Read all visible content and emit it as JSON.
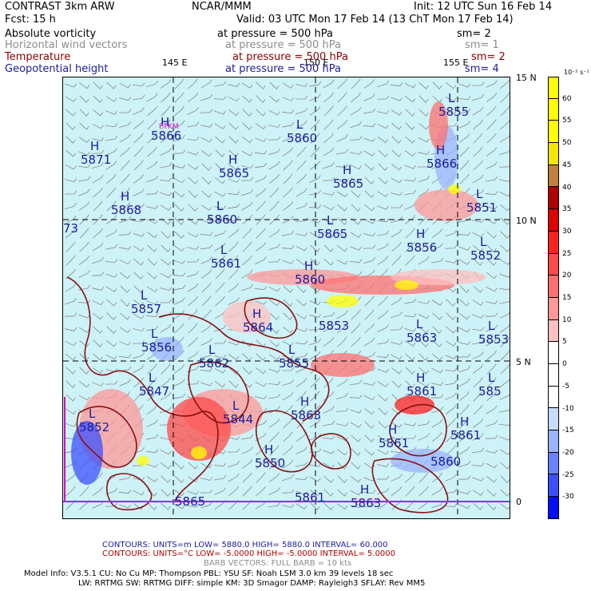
{
  "header": {
    "title": "CONTRAST  3km ARW",
    "org": "NCAR/MMM",
    "init": "Init: 12 UTC Sun 16 Feb 14",
    "fcst": "Fcst:    15 h",
    "valid": "Valid: 03 UTC Mon 17 Feb 14 (13 ChT Mon 17 Feb 14)"
  },
  "fields": [
    {
      "name": "Absolute vorticity",
      "level": "at pressure =  500 hPa",
      "sm": "sm= 2",
      "color": "#000000"
    },
    {
      "name": "Horizontal wind vectors",
      "level": "at pressure =  500 hPa",
      "sm": "sm= 1",
      "color": "#8c8c8c"
    },
    {
      "name": "Temperature",
      "level": "at pressure =  500 hPa",
      "sm": "sm= 2",
      "color": "#8b0000"
    },
    {
      "name": "Geopotential height",
      "level": "at pressure =  500 hPa",
      "sm": "sm= 4",
      "color": "#1c1c9c"
    }
  ],
  "map": {
    "lon_labels": [
      "145 E",
      "150 E",
      "155 E"
    ],
    "lat_labels": [
      "15 N",
      "10 N",
      "5 N",
      "0"
    ],
    "station_label": "PTKM",
    "pressure_centers": [
      {
        "type": "H",
        "value": "5866"
      },
      {
        "type": "H",
        "value": "5871"
      },
      {
        "type": "L",
        "value": "5860"
      },
      {
        "type": "H",
        "value": "5865"
      },
      {
        "type": "H",
        "value": "5865"
      },
      {
        "type": "L",
        "value": "5855"
      },
      {
        "type": "H",
        "value": "5866"
      },
      {
        "type": "H",
        "value": "5868"
      },
      {
        "type": "L",
        "value": "5860"
      },
      {
        "type": "L",
        "value": "5851"
      },
      {
        "type": "",
        "value": "73"
      },
      {
        "type": "L",
        "value": "5865"
      },
      {
        "type": "H",
        "value": "5856"
      },
      {
        "type": "L",
        "value": "5852"
      },
      {
        "type": "L",
        "value": "5861"
      },
      {
        "type": "H",
        "value": "5860"
      },
      {
        "type": "L",
        "value": "5857"
      },
      {
        "type": "L",
        "value": "5853"
      },
      {
        "type": "H",
        "value": "5864"
      },
      {
        "type": "L",
        "value": "5856"
      },
      {
        "type": "",
        "value": "5853"
      },
      {
        "type": "L",
        "value": "5863"
      },
      {
        "type": "L",
        "value": "5862"
      },
      {
        "type": "L",
        "value": "5855"
      },
      {
        "type": "L",
        "value": "5847"
      },
      {
        "type": "H",
        "value": "5861"
      },
      {
        "type": "L",
        "value": "585"
      },
      {
        "type": "H",
        "value": "5863"
      },
      {
        "type": "L",
        "value": "5844"
      },
      {
        "type": "L",
        "value": "5852"
      },
      {
        "type": "H",
        "value": "5861"
      },
      {
        "type": "H",
        "value": "5861"
      },
      {
        "type": "H",
        "value": "5850"
      },
      {
        "type": "",
        "value": "5860"
      },
      {
        "type": "H",
        "value": "5863"
      },
      {
        "type": "",
        "value": "5861"
      },
      {
        "type": "",
        "value": "5865"
      }
    ]
  },
  "colorbar": {
    "unit": "10⁻⁵ s⁻¹",
    "ticks": [
      "60",
      "55",
      "50",
      "45",
      "40",
      "35",
      "30",
      "25",
      "20",
      "15",
      "10",
      "5",
      "0",
      "-5",
      "-10",
      "-15",
      "-20",
      "-25",
      "-30"
    ],
    "colors": [
      "#ffff00",
      "#ffff00",
      "#ffff00",
      "#f5e600",
      "#c08040",
      "#b00000",
      "#e00000",
      "#ff2020",
      "#ff4a4a",
      "#ff7070",
      "#ff9898",
      "#ffc0c0",
      "#ffffff",
      "#ffffff",
      "#ffffff",
      "#c8dcff",
      "#9ab4ff",
      "#6a82ff",
      "#3c50ff",
      "#0010ff"
    ]
  },
  "footer": {
    "contours1": "CONTOURS:  UNITS=m  LOW=  5880.0      HIGH=  5880.0      INTERVAL=   60.000",
    "contours2": "CONTOURS:  UNITS=°C  LOW= -5.0000      HIGH= -5.0000      INTERVAL=   5.0000",
    "barbs": "BARB VECTORS:  FULL BARB = 10 kts",
    "model1": "Model Info: V3.5.1     CU: No Cu     MP: Thompson     PBL: YSU      SF: Noah LSM      3.0 km    39 levels    18 sec",
    "model2": "LW: RRTMG     SW: RRTMG    DIFF: simple KM: 3D Smagor DAMP: Rayleigh3   SFLAY: Rev MM5"
  }
}
